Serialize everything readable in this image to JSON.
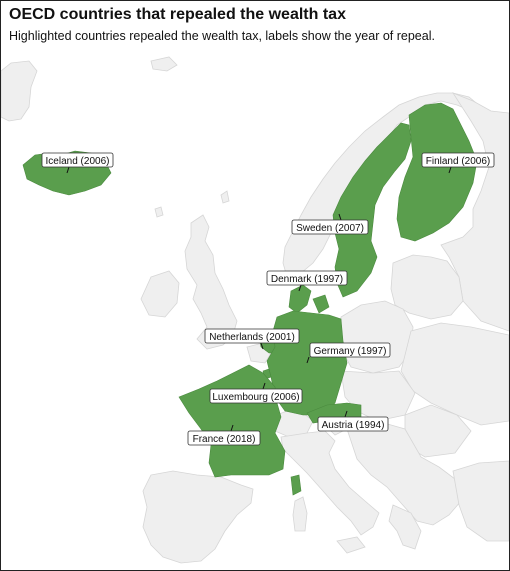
{
  "title": "OECD countries that repealed the wealth tax",
  "subtitle": "Highlighted countries repealed the wealth tax, labels show the year of repeal.",
  "colors": {
    "highlight": "#5a9e4d",
    "land": "#efefef",
    "border": "#d6d6d6"
  },
  "countries": [
    {
      "id": "iceland",
      "label": "Iceland (2006)",
      "name": "Iceland",
      "year": 2006
    },
    {
      "id": "finland",
      "label": "Finland (2006)",
      "name": "Finland",
      "year": 2006
    },
    {
      "id": "sweden",
      "label": "Sweden (2007)",
      "name": "Sweden",
      "year": 2007
    },
    {
      "id": "denmark",
      "label": "Denmark (1997)",
      "name": "Denmark",
      "year": 1997
    },
    {
      "id": "netherlands",
      "label": "Netherlands (2001)",
      "name": "Netherlands",
      "year": 2001
    },
    {
      "id": "germany",
      "label": "Germany (1997)",
      "name": "Germany",
      "year": 1997
    },
    {
      "id": "luxembourg",
      "label": "Luxembourg (2006)",
      "name": "Luxembourg",
      "year": 2006
    },
    {
      "id": "austria",
      "label": "Austria (1994)",
      "name": "Austria",
      "year": 1994
    },
    {
      "id": "france",
      "label": "France (2018)",
      "name": "France",
      "year": 2018
    }
  ]
}
